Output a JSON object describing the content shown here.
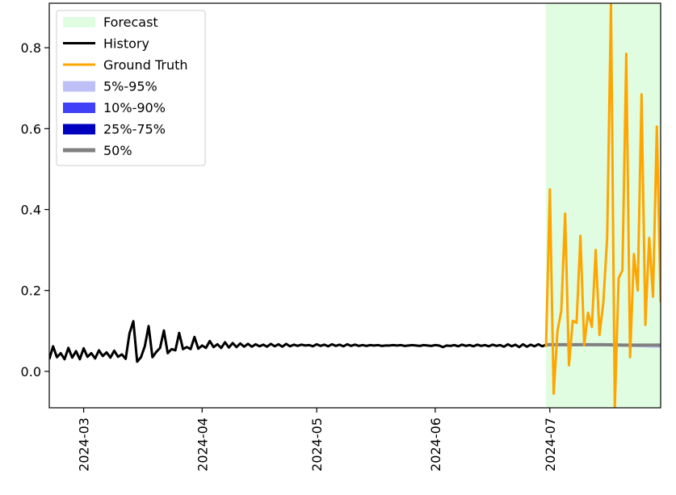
{
  "chart_data": {
    "type": "line",
    "title": "",
    "xlabel": "",
    "ylabel": "",
    "x_range": [
      "2024-02-21",
      "2024-07-30"
    ],
    "ylim": [
      -0.09,
      0.91
    ],
    "yticks": [
      0.0,
      0.2,
      0.4,
      0.6,
      0.8
    ],
    "ytick_labels": [
      "0.0",
      "0.2",
      "0.4",
      "0.6",
      "0.8"
    ],
    "xticks": [
      "2024-03-01",
      "2024-04-01",
      "2024-05-01",
      "2024-06-01",
      "2024-07-01"
    ],
    "xtick_labels": [
      "2024-03",
      "2024-04",
      "2024-05",
      "2024-06",
      "2024-07"
    ],
    "grid": false,
    "legend_position": "top-left",
    "legend": [
      {
        "label": "Forecast",
        "kind": "patch",
        "color": "#e1fde1"
      },
      {
        "label": "History",
        "kind": "line",
        "color": "#000000"
      },
      {
        "label": "Ground Truth",
        "kind": "line",
        "color": "#ffa500"
      },
      {
        "label": "5%-95%",
        "kind": "patch",
        "color": "#bfbff8"
      },
      {
        "label": "10%-90%",
        "kind": "patch",
        "color": "#4040f8"
      },
      {
        "label": "25%-75%",
        "kind": "patch",
        "color": "#0000c0"
      },
      {
        "label": "50%",
        "kind": "line",
        "color": "#808080"
      }
    ],
    "forecast_region": {
      "start": "2024-06-30",
      "end": "2024-07-30"
    },
    "series": [
      {
        "name": "History",
        "color": "#000000",
        "points": [
          [
            "2024-02-21",
            0.03
          ],
          [
            "2024-02-22",
            0.062
          ],
          [
            "2024-02-23",
            0.035
          ],
          [
            "2024-02-24",
            0.045
          ],
          [
            "2024-02-25",
            0.03
          ],
          [
            "2024-02-26",
            0.058
          ],
          [
            "2024-02-27",
            0.034
          ],
          [
            "2024-02-28",
            0.05
          ],
          [
            "2024-02-29",
            0.03
          ],
          [
            "2024-03-01",
            0.057
          ],
          [
            "2024-03-02",
            0.036
          ],
          [
            "2024-03-03",
            0.045
          ],
          [
            "2024-03-04",
            0.032
          ],
          [
            "2024-03-05",
            0.052
          ],
          [
            "2024-03-06",
            0.038
          ],
          [
            "2024-03-07",
            0.047
          ],
          [
            "2024-03-08",
            0.034
          ],
          [
            "2024-03-09",
            0.051
          ],
          [
            "2024-03-10",
            0.036
          ],
          [
            "2024-03-11",
            0.042
          ],
          [
            "2024-03-12",
            0.031
          ],
          [
            "2024-03-13",
            0.094
          ],
          [
            "2024-03-14",
            0.124
          ],
          [
            "2024-03-15",
            0.024
          ],
          [
            "2024-03-16",
            0.035
          ],
          [
            "2024-03-17",
            0.062
          ],
          [
            "2024-03-18",
            0.112
          ],
          [
            "2024-03-19",
            0.035
          ],
          [
            "2024-03-20",
            0.048
          ],
          [
            "2024-03-21",
            0.058
          ],
          [
            "2024-03-22",
            0.101
          ],
          [
            "2024-03-23",
            0.045
          ],
          [
            "2024-03-24",
            0.055
          ],
          [
            "2024-03-25",
            0.052
          ],
          [
            "2024-03-26",
            0.095
          ],
          [
            "2024-03-27",
            0.055
          ],
          [
            "2024-03-28",
            0.06
          ],
          [
            "2024-03-29",
            0.055
          ],
          [
            "2024-03-30",
            0.085
          ],
          [
            "2024-03-31",
            0.056
          ],
          [
            "2024-04-01",
            0.064
          ],
          [
            "2024-04-02",
            0.058
          ],
          [
            "2024-04-03",
            0.075
          ],
          [
            "2024-04-04",
            0.06
          ],
          [
            "2024-04-05",
            0.067
          ],
          [
            "2024-04-06",
            0.058
          ],
          [
            "2024-04-07",
            0.072
          ],
          [
            "2024-04-08",
            0.059
          ],
          [
            "2024-04-09",
            0.07
          ],
          [
            "2024-04-10",
            0.06
          ],
          [
            "2024-04-11",
            0.069
          ],
          [
            "2024-04-12",
            0.061
          ],
          [
            "2024-04-13",
            0.068
          ],
          [
            "2024-04-14",
            0.061
          ],
          [
            "2024-04-15",
            0.067
          ],
          [
            "2024-04-16",
            0.062
          ],
          [
            "2024-04-17",
            0.066
          ],
          [
            "2024-04-18",
            0.061
          ],
          [
            "2024-04-19",
            0.068
          ],
          [
            "2024-04-20",
            0.062
          ],
          [
            "2024-04-21",
            0.067
          ],
          [
            "2024-04-22",
            0.061
          ],
          [
            "2024-04-23",
            0.068
          ],
          [
            "2024-04-24",
            0.062
          ],
          [
            "2024-04-25",
            0.066
          ],
          [
            "2024-04-26",
            0.063
          ],
          [
            "2024-04-27",
            0.066
          ],
          [
            "2024-04-28",
            0.064
          ],
          [
            "2024-04-29",
            0.065
          ],
          [
            "2024-04-30",
            0.062
          ],
          [
            "2024-05-01",
            0.067
          ],
          [
            "2024-05-02",
            0.063
          ],
          [
            "2024-05-03",
            0.066
          ],
          [
            "2024-05-04",
            0.062
          ],
          [
            "2024-05-05",
            0.067
          ],
          [
            "2024-05-06",
            0.063
          ],
          [
            "2024-05-07",
            0.066
          ],
          [
            "2024-05-08",
            0.062
          ],
          [
            "2024-05-09",
            0.067
          ],
          [
            "2024-05-10",
            0.063
          ],
          [
            "2024-05-11",
            0.066
          ],
          [
            "2024-05-12",
            0.063
          ],
          [
            "2024-05-13",
            0.065
          ],
          [
            "2024-05-14",
            0.063
          ],
          [
            "2024-05-15",
            0.065
          ],
          [
            "2024-05-16",
            0.064
          ],
          [
            "2024-05-17",
            0.065
          ],
          [
            "2024-05-18",
            0.063
          ],
          [
            "2024-05-19",
            0.064
          ],
          [
            "2024-05-20",
            0.064
          ],
          [
            "2024-05-21",
            0.065
          ],
          [
            "2024-05-22",
            0.064
          ],
          [
            "2024-05-23",
            0.065
          ],
          [
            "2024-05-24",
            0.063
          ],
          [
            "2024-05-25",
            0.064
          ],
          [
            "2024-05-26",
            0.065
          ],
          [
            "2024-05-27",
            0.064
          ],
          [
            "2024-05-28",
            0.063
          ],
          [
            "2024-05-29",
            0.065
          ],
          [
            "2024-05-30",
            0.064
          ],
          [
            "2024-05-31",
            0.063
          ],
          [
            "2024-06-01",
            0.065
          ],
          [
            "2024-06-02",
            0.064
          ],
          [
            "2024-06-03",
            0.06
          ],
          [
            "2024-06-04",
            0.064
          ],
          [
            "2024-06-05",
            0.063
          ],
          [
            "2024-06-06",
            0.065
          ],
          [
            "2024-06-07",
            0.062
          ],
          [
            "2024-06-08",
            0.066
          ],
          [
            "2024-06-09",
            0.063
          ],
          [
            "2024-06-10",
            0.065
          ],
          [
            "2024-06-11",
            0.062
          ],
          [
            "2024-06-12",
            0.066
          ],
          [
            "2024-06-13",
            0.063
          ],
          [
            "2024-06-14",
            0.065
          ],
          [
            "2024-06-15",
            0.062
          ],
          [
            "2024-06-16",
            0.066
          ],
          [
            "2024-06-17",
            0.063
          ],
          [
            "2024-06-18",
            0.065
          ],
          [
            "2024-06-19",
            0.061
          ],
          [
            "2024-06-20",
            0.067
          ],
          [
            "2024-06-21",
            0.062
          ],
          [
            "2024-06-22",
            0.066
          ],
          [
            "2024-06-23",
            0.06
          ],
          [
            "2024-06-24",
            0.067
          ],
          [
            "2024-06-25",
            0.061
          ],
          [
            "2024-06-26",
            0.066
          ],
          [
            "2024-06-27",
            0.062
          ],
          [
            "2024-06-28",
            0.067
          ],
          [
            "2024-06-29",
            0.062
          ],
          [
            "2024-06-30",
            0.066
          ]
        ]
      },
      {
        "name": "Ground Truth",
        "color": "#ffa500",
        "points": [
          [
            "2024-06-30",
            0.06
          ],
          [
            "2024-07-01",
            0.45
          ],
          [
            "2024-07-02",
            -0.055
          ],
          [
            "2024-07-03",
            0.1
          ],
          [
            "2024-07-04",
            0.15
          ],
          [
            "2024-07-05",
            0.39
          ],
          [
            "2024-07-06",
            0.015
          ],
          [
            "2024-07-07",
            0.125
          ],
          [
            "2024-07-08",
            0.12
          ],
          [
            "2024-07-09",
            0.335
          ],
          [
            "2024-07-10",
            0.065
          ],
          [
            "2024-07-11",
            0.145
          ],
          [
            "2024-07-12",
            0.11
          ],
          [
            "2024-07-13",
            0.3
          ],
          [
            "2024-07-14",
            0.09
          ],
          [
            "2024-07-15",
            0.17
          ],
          [
            "2024-07-16",
            0.33
          ],
          [
            "2024-07-17",
            0.91
          ],
          [
            "2024-07-18",
            -0.09
          ],
          [
            "2024-07-19",
            0.23
          ],
          [
            "2024-07-20",
            0.25
          ],
          [
            "2024-07-21",
            0.785
          ],
          [
            "2024-07-22",
            0.035
          ],
          [
            "2024-07-23",
            0.29
          ],
          [
            "2024-07-24",
            0.2
          ],
          [
            "2024-07-25",
            0.685
          ],
          [
            "2024-07-26",
            0.115
          ],
          [
            "2024-07-27",
            0.33
          ],
          [
            "2024-07-28",
            0.185
          ],
          [
            "2024-07-29",
            0.605
          ],
          [
            "2024-07-30",
            0.17
          ]
        ]
      },
      {
        "name": "50%",
        "color": "#808080",
        "points": [
          [
            "2024-06-30",
            0.066
          ],
          [
            "2024-07-05",
            0.066
          ],
          [
            "2024-07-10",
            0.066
          ],
          [
            "2024-07-15",
            0.066
          ],
          [
            "2024-07-20",
            0.065
          ],
          [
            "2024-07-25",
            0.065
          ],
          [
            "2024-07-30",
            0.065
          ]
        ]
      }
    ],
    "bands": [
      {
        "name": "5%-95%",
        "color": "#bfbff8",
        "points": [
          [
            "2024-06-30",
            0.064,
            0.068
          ],
          [
            "2024-07-10",
            0.063,
            0.068
          ],
          [
            "2024-07-20",
            0.061,
            0.068
          ],
          [
            "2024-07-30",
            0.058,
            0.069
          ]
        ]
      },
      {
        "name": "10%-90%",
        "color": "#4040f8",
        "points": [
          [
            "2024-06-30",
            0.065,
            0.067
          ],
          [
            "2024-07-10",
            0.064,
            0.067
          ],
          [
            "2024-07-20",
            0.063,
            0.067
          ],
          [
            "2024-07-30",
            0.062,
            0.068
          ]
        ]
      },
      {
        "name": "25%-75%",
        "color": "#0000c0",
        "points": [
          [
            "2024-06-30",
            0.0655,
            0.0665
          ],
          [
            "2024-07-10",
            0.065,
            0.0665
          ],
          [
            "2024-07-20",
            0.0645,
            0.066
          ],
          [
            "2024-07-30",
            0.064,
            0.066
          ]
        ]
      }
    ]
  }
}
